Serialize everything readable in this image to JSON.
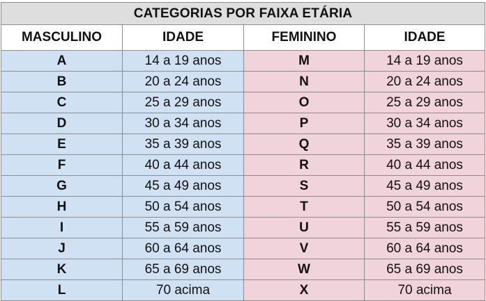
{
  "title": "CATEGORIAS POR FAIXA ETÁRIA",
  "headers": [
    "MASCULINO",
    "IDADE",
    "FEMININO",
    "IDADE"
  ],
  "colors": {
    "male_fill": "#cfe1f3",
    "female_fill": "#f1d3dc",
    "title_fill": "#dedede",
    "border": "#8c8c8c"
  },
  "rows": [
    {
      "male": "A",
      "male_age": "14 a 19 anos",
      "female": "M",
      "female_age": "14 a 19 anos"
    },
    {
      "male": "B",
      "male_age": "20 a 24 anos",
      "female": "N",
      "female_age": "20 a 24 anos"
    },
    {
      "male": "C",
      "male_age": "25 a 29 anos",
      "female": "O",
      "female_age": "25 a 29 anos"
    },
    {
      "male": "D",
      "male_age": "30 a 34 anos",
      "female": "P",
      "female_age": "30 a 34 anos"
    },
    {
      "male": "E",
      "male_age": "35 a 39 anos",
      "female": "Q",
      "female_age": "35 a 39 anos"
    },
    {
      "male": "F",
      "male_age": "40 a 44 anos",
      "female": "R",
      "female_age": "40 a 44 anos"
    },
    {
      "male": "G",
      "male_age": "45 a 49 anos",
      "female": "S",
      "female_age": "45 a 49 anos"
    },
    {
      "male": "H",
      "male_age": "50 a 54 anos",
      "female": "T",
      "female_age": "50 a 54 anos"
    },
    {
      "male": "I",
      "male_age": "55 a 59 anos",
      "female": "U",
      "female_age": "55 a 59 anos"
    },
    {
      "male": "J",
      "male_age": "60 a 64 anos",
      "female": "V",
      "female_age": "60 a 64 anos"
    },
    {
      "male": "K",
      "male_age": "65 a 69 anos",
      "female": "W",
      "female_age": "65 a 69 anos"
    },
    {
      "male": "L",
      "male_age": "70 acima",
      "female": "X",
      "female_age": "70 acima"
    }
  ]
}
